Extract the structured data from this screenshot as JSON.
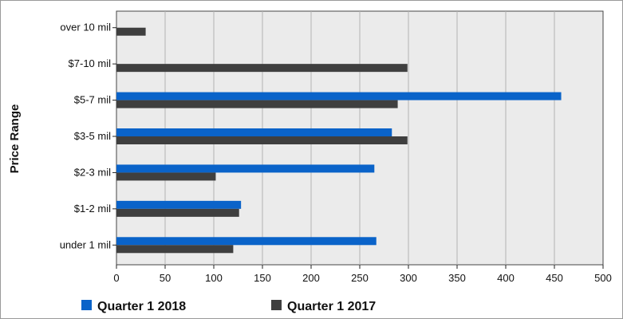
{
  "chart_data": {
    "type": "bar",
    "orientation": "horizontal",
    "categories": [
      "over 10 mil",
      "$7-10 mil",
      "$5-7 mil",
      "$3-5 mil",
      "$2-3 mil",
      "$1-2 mil",
      "under 1 mil"
    ],
    "series": [
      {
        "name": "Quarter 1 2018",
        "color": "#0a63c9",
        "values": [
          0,
          0,
          457,
          283,
          265,
          128,
          267
        ]
      },
      {
        "name": "Quarter 1 2017",
        "color": "#3f3f3f",
        "values": [
          30,
          299,
          289,
          299,
          102,
          126,
          120
        ]
      }
    ],
    "ylabel": "Price Range",
    "xlim": [
      0,
      500
    ],
    "xticks": [
      0,
      50,
      100,
      150,
      200,
      250,
      300,
      350,
      400,
      450,
      500
    ],
    "grid": "vertical",
    "legend_position": "bottom"
  },
  "colors": {
    "plot_background": "#ebebeb",
    "gridline": "#b3b3b3"
  }
}
